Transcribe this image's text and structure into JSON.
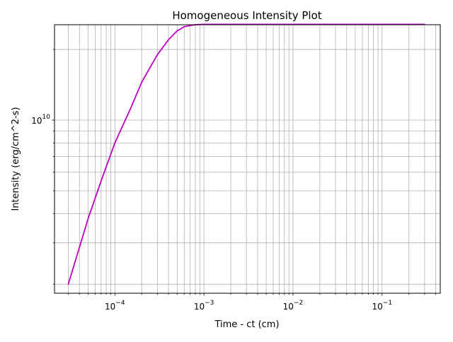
{
  "chart_data": {
    "type": "line",
    "title": "Homogeneous Intensity Plot",
    "xlabel": "Time - ct (cm)",
    "ylabel": "Intensity (erg/cm^2-s)",
    "xscale": "log",
    "yscale": "log",
    "xlim": [
      2.1e-05,
      0.45
    ],
    "ylim": [
      1830000000.0,
      25500000000.0
    ],
    "grid": true,
    "grid_which": "both",
    "line_color": "#bf00bf",
    "x_major_ticks": [
      {
        "value": 0.0001,
        "base": "10",
        "exp": "−4"
      },
      {
        "value": 0.001,
        "base": "10",
        "exp": "−3"
      },
      {
        "value": 0.01,
        "base": "10",
        "exp": "−2"
      },
      {
        "value": 0.1,
        "base": "10",
        "exp": "−1"
      }
    ],
    "y_major_ticks": [
      {
        "value": 10000000000.0,
        "base": "10",
        "exp": "10"
      }
    ],
    "series": [
      {
        "x": [
          3e-05,
          5e-05,
          7e-05,
          0.0001,
          0.00015,
          0.0002,
          0.0003,
          0.0004,
          0.0005,
          0.0006,
          0.0007,
          0.0008,
          0.001,
          0.0015,
          0.003,
          0.01,
          0.1,
          0.3
        ],
        "y": [
          2000000000.0,
          3800000000.0,
          5500000000.0,
          8000000000.0,
          11200000000.0,
          14500000000.0,
          19000000000.0,
          22000000000.0,
          24000000000.0,
          25000000000.0,
          25300000000.0,
          25500000000.0,
          25600000000.0,
          25600000000.0,
          25600000000.0,
          25600000000.0,
          25600000000.0,
          25600000000.0
        ]
      }
    ]
  }
}
